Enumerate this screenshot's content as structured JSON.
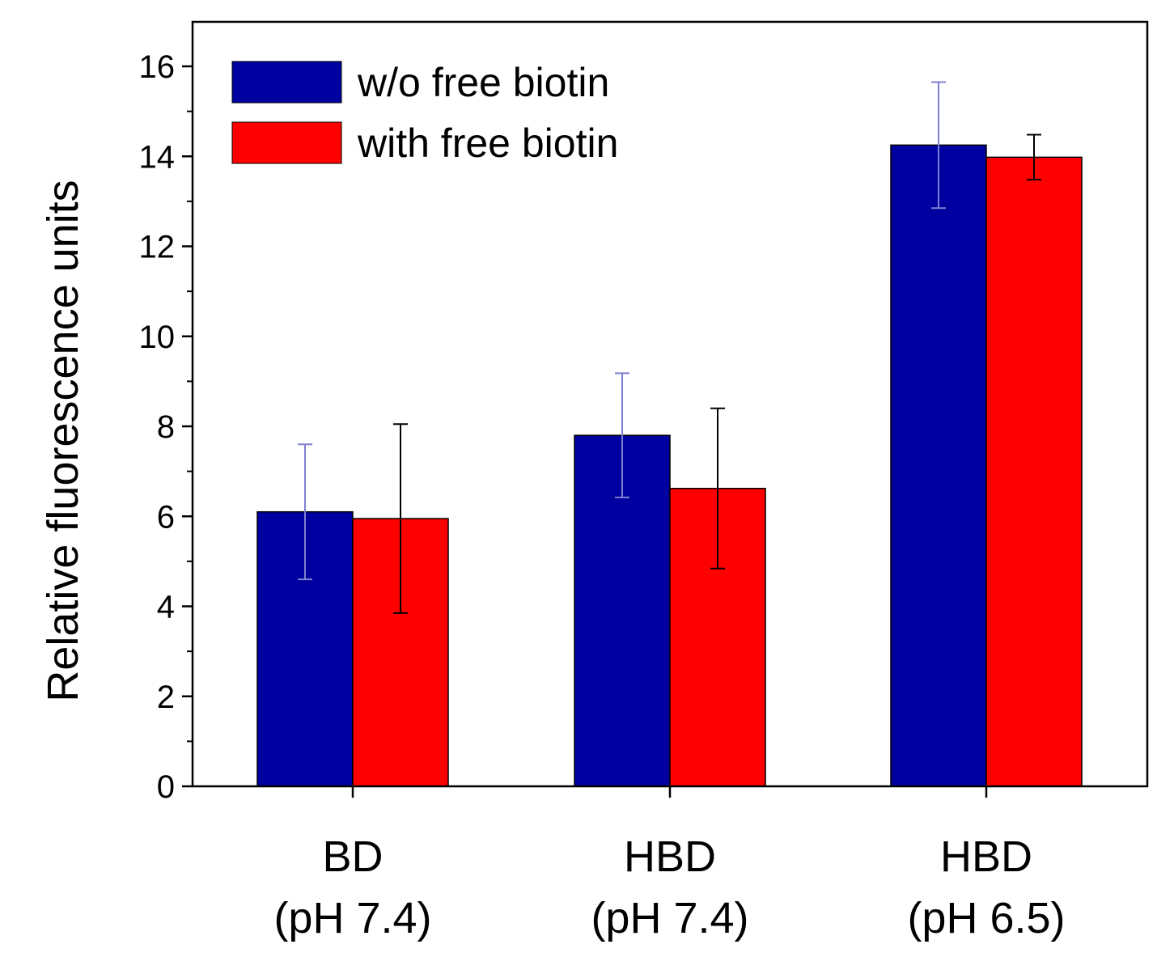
{
  "chart_data": {
    "type": "bar",
    "title": "",
    "xlabel": "",
    "ylabel": "Relative fluorescence units",
    "ylim": [
      0,
      17
    ],
    "yticks": [
      0,
      2,
      4,
      6,
      8,
      10,
      12,
      14,
      16
    ],
    "yticks_minor": [
      1,
      3,
      5,
      7,
      9,
      11,
      13,
      15
    ],
    "categories": [
      {
        "line1": "BD",
        "line2": "(pH 7.4)"
      },
      {
        "line1": "HBD",
        "line2": "(pH 7.4)"
      },
      {
        "line1": "HBD",
        "line2": "(pH 6.5)"
      }
    ],
    "series": [
      {
        "name": "w/o free biotin",
        "color": "#0000A0",
        "error_color": "#8080D0",
        "values": [
          6.1,
          7.8,
          14.25
        ],
        "errors": [
          1.5,
          1.38,
          1.4
        ]
      },
      {
        "name": "with free biotin",
        "color": "#FF0000",
        "error_color": "#000000",
        "values": [
          5.95,
          6.62,
          13.98
        ],
        "errors": [
          2.1,
          1.78,
          0.5
        ]
      }
    ],
    "legend_position": "top-left",
    "grid": false
  }
}
